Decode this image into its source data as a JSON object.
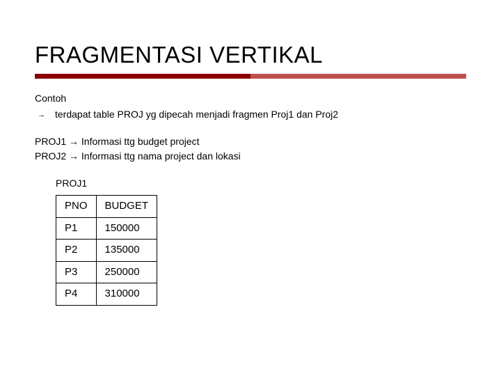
{
  "title": "FRAGMENTASI VERTIKAL",
  "underline": {
    "color1": "#8b0000",
    "color2": "#c0504d"
  },
  "contoh_label": "Contoh",
  "bullet_text": "terdapat table PROJ yg dipecah menjadi fragmen Proj1 dan Proj2",
  "proj_line1": "PROJ1 → Informasi ttg budget project",
  "proj_line2": "PROJ2 → Informasi ttg nama project dan lokasi",
  "table": {
    "label": "PROJ1",
    "columns": [
      "PNO",
      "BUDGET"
    ],
    "rows": [
      [
        "P1",
        "150000"
      ],
      [
        "P2",
        "135000"
      ],
      [
        "P3",
        "250000"
      ],
      [
        "P4",
        "310000"
      ]
    ],
    "border_color": "#000000",
    "font_size": 15
  },
  "colors": {
    "background": "#ffffff",
    "text": "#000000"
  }
}
